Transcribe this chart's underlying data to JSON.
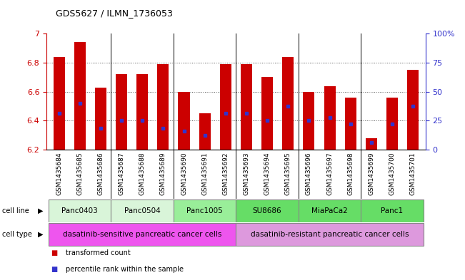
{
  "title": "GDS5627 / ILMN_1736053",
  "samples": [
    "GSM1435684",
    "GSM1435685",
    "GSM1435686",
    "GSM1435687",
    "GSM1435688",
    "GSM1435689",
    "GSM1435690",
    "GSM1435691",
    "GSM1435692",
    "GSM1435693",
    "GSM1435694",
    "GSM1435695",
    "GSM1435696",
    "GSM1435697",
    "GSM1435698",
    "GSM1435699",
    "GSM1435700",
    "GSM1435701"
  ],
  "bar_tops": [
    6.84,
    6.94,
    6.63,
    6.72,
    6.72,
    6.79,
    6.6,
    6.45,
    6.79,
    6.79,
    6.7,
    6.84,
    6.6,
    6.64,
    6.56,
    6.28,
    6.56,
    6.75
  ],
  "bar_base": 6.2,
  "percentile_values": [
    6.45,
    6.52,
    6.35,
    6.4,
    6.4,
    6.35,
    6.33,
    6.3,
    6.45,
    6.45,
    6.4,
    6.5,
    6.4,
    6.42,
    6.38,
    6.25,
    6.38,
    6.5
  ],
  "ylim_left": [
    6.2,
    7.0
  ],
  "ylim_right": [
    0,
    100
  ],
  "yticks_left": [
    6.2,
    6.4,
    6.6,
    6.8,
    7.0
  ],
  "ytick_labels_left": [
    "6.2",
    "6.4",
    "6.6",
    "6.8",
    "7"
  ],
  "yticks_right": [
    0,
    25,
    50,
    75,
    100
  ],
  "ytick_labels_right": [
    "0",
    "25",
    "50",
    "75",
    "100%"
  ],
  "bar_color": "#cc0000",
  "percentile_color": "#3333cc",
  "cell_lines": [
    {
      "label": "Panc0403",
      "start": 0,
      "end": 3,
      "color": "#d9f5d9"
    },
    {
      "label": "Panc0504",
      "start": 3,
      "end": 6,
      "color": "#d9f5d9"
    },
    {
      "label": "Panc1005",
      "start": 6,
      "end": 9,
      "color": "#99ee99"
    },
    {
      "label": "SU8686",
      "start": 9,
      "end": 12,
      "color": "#66dd66"
    },
    {
      "label": "MiaPaCa2",
      "start": 12,
      "end": 15,
      "color": "#66dd66"
    },
    {
      "label": "Panc1",
      "start": 15,
      "end": 18,
      "color": "#66dd66"
    }
  ],
  "cell_types": [
    {
      "label": "dasatinib-sensitive pancreatic cancer cells",
      "start": 0,
      "end": 9,
      "color": "#ee55ee"
    },
    {
      "label": "dasatinib-resistant pancreatic cancer cells",
      "start": 9,
      "end": 18,
      "color": "#dd99dd"
    }
  ],
  "legend_items": [
    {
      "color": "#cc0000",
      "label": "transformed count"
    },
    {
      "color": "#3333cc",
      "label": "percentile rank within the sample"
    }
  ],
  "dotted_line_color": "#555555",
  "bg_color": "#ffffff",
  "axis_color_left": "#cc0000",
  "axis_color_right": "#3333cc",
  "xtick_bg": "#cccccc",
  "group_separators": [
    3,
    6,
    9,
    12,
    15
  ]
}
